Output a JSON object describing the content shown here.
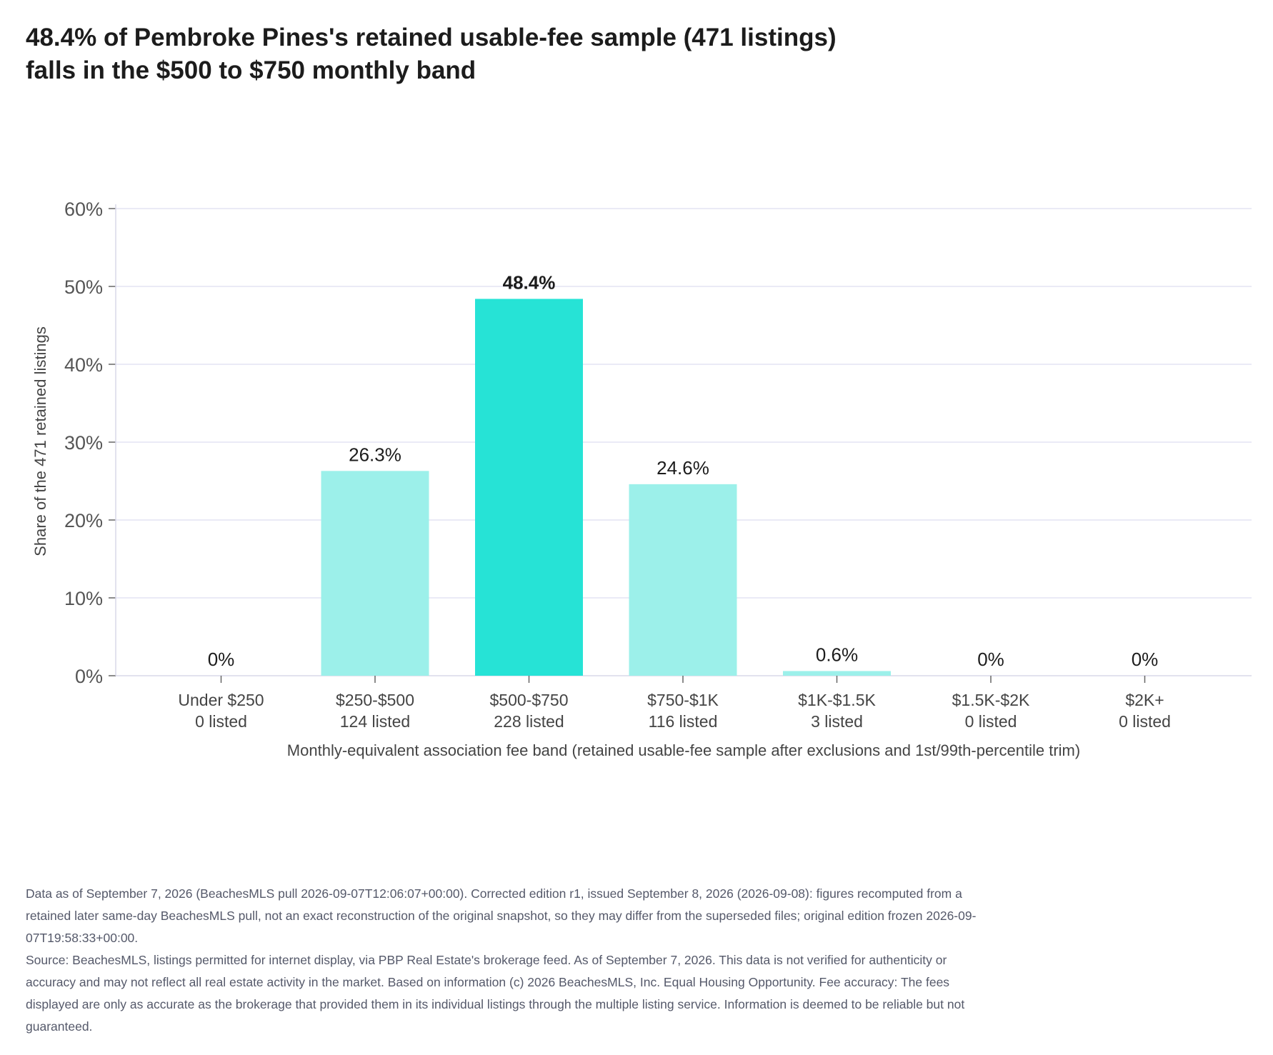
{
  "title": "48.4% of Pembroke Pines's retained usable-fee sample (471 listings) falls in the $500 to $750 monthly band",
  "notes": {
    "edition": "Data as of September 7, 2026 (BeachesMLS pull 2026-09-07T12:06:07+00:00). Corrected edition r1, issued September 8, 2026 (2026-09-08): figures recomputed from a retained later same-day BeachesMLS pull, not an exact reconstruction of the original snapshot, so they may differ from the superseded files; original edition frozen 2026-09-07T19:58:33+00:00.",
    "source": "Source: BeachesMLS, listings permitted for internet display, via PBP Real Estate's brokerage feed. As of September 7, 2026. This data is not verified for authenticity or accuracy and may not reflect all real estate activity in the market. Based on information (c) 2026 BeachesMLS, Inc. Equal Housing Opportunity. Fee accuracy: The fees displayed are only as accurate as the brokerage that provided them in its individual listings through the multiple listing service. Information is deemed to be reliable but not guaranteed."
  },
  "chart_data": {
    "type": "bar",
    "categories": [
      "Under $250",
      "$250-$500",
      "$500-$750",
      "$750-$1K",
      "$1K-$1.5K",
      "$1.5K-$2K",
      "$2K+"
    ],
    "counts": [
      "0 listed",
      "124 listed",
      "228 listed",
      "116 listed",
      "3 listed",
      "0 listed",
      "0 listed"
    ],
    "values": [
      0,
      26.3,
      48.4,
      24.6,
      0.6,
      0,
      0
    ],
    "value_labels": [
      "0%",
      "26.3%",
      "48.4%",
      "24.6%",
      "0.6%",
      "0%",
      "0%"
    ],
    "highlight_index": 2,
    "xlabel": "Monthly-equivalent association fee band (retained usable-fee sample after exclusions and 1st/99th-percentile trim)",
    "ylabel": "Share of the 471 retained listings",
    "ylim": [
      0,
      60
    ],
    "yticks": [
      0,
      10,
      20,
      30,
      40,
      50,
      60
    ],
    "ytick_labels": [
      "0%",
      "10%",
      "20%",
      "30%",
      "40%",
      "50%",
      "60%"
    ],
    "grid": true,
    "colors": {
      "bar": "#9cf0ea",
      "highlight": "#26e3d6",
      "grid": "#e3e3f3",
      "axis": "#d8d8e8"
    }
  }
}
